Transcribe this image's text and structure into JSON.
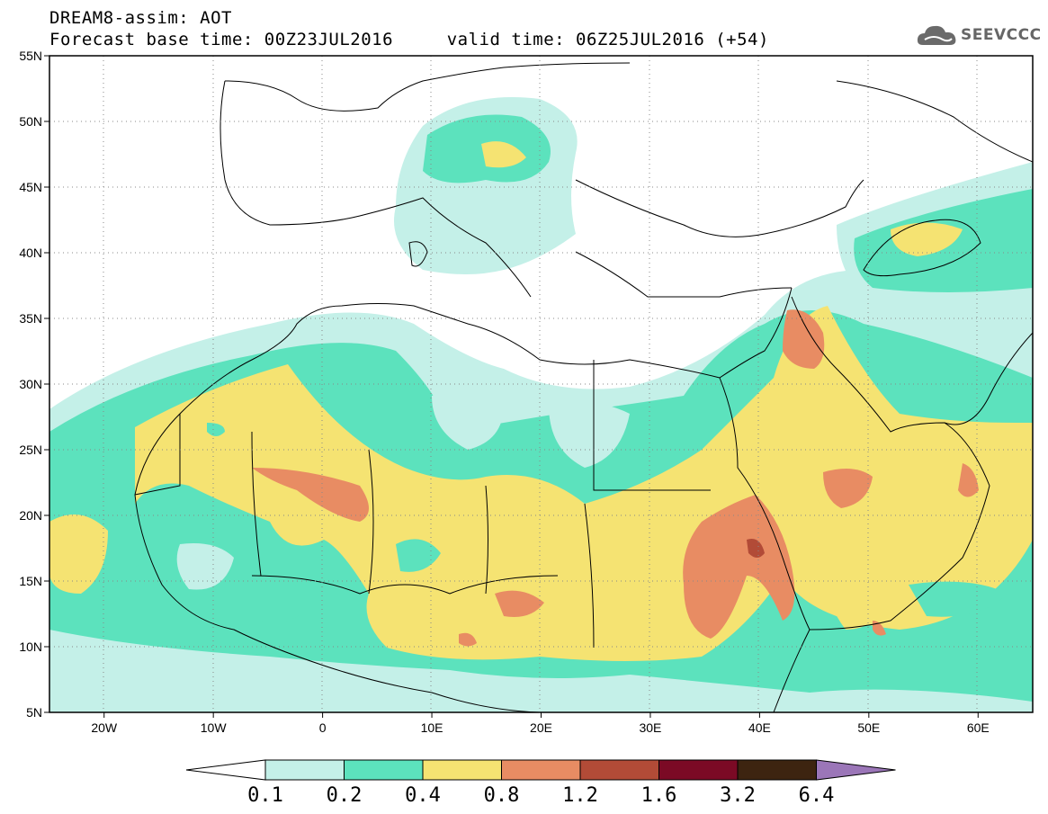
{
  "header": {
    "line1": "DREAM8-assim: AOT",
    "line2": "Forecast base time: 00Z23JUL2016     valid time: 06Z25JUL2016 (+54)"
  },
  "logo": {
    "text": "SEEVCCC",
    "icon": "cloud-icon"
  },
  "map": {
    "lon_range": [
      -25,
      65
    ],
    "lat_range": [
      5,
      55
    ],
    "lat_labels": [
      "55N",
      "50N",
      "45N",
      "40N",
      "35N",
      "30N",
      "25N",
      "20N",
      "15N",
      "10N",
      "5N"
    ],
    "lon_labels": [
      "20W",
      "10W",
      "0",
      "10E",
      "20E",
      "30E",
      "40E",
      "50E",
      "60E"
    ],
    "gridlines": "dotted"
  },
  "colorbar": {
    "labels": [
      "0.1",
      "0.2",
      "0.4",
      "0.8",
      "1.2",
      "1.6",
      "3.2",
      "6.4"
    ],
    "colors": [
      "#ffffff",
      "#c4f0e8",
      "#5ce2bd",
      "#f5e372",
      "#e88c63",
      "#b24b37",
      "#7b0a25",
      "#3d2410",
      "#9b76b8"
    ]
  },
  "colors": {
    "level1": "#c4f0e8",
    "level2": "#5ce2bd",
    "level3": "#f5e372",
    "level4": "#e88c63",
    "level5": "#b24b37"
  }
}
